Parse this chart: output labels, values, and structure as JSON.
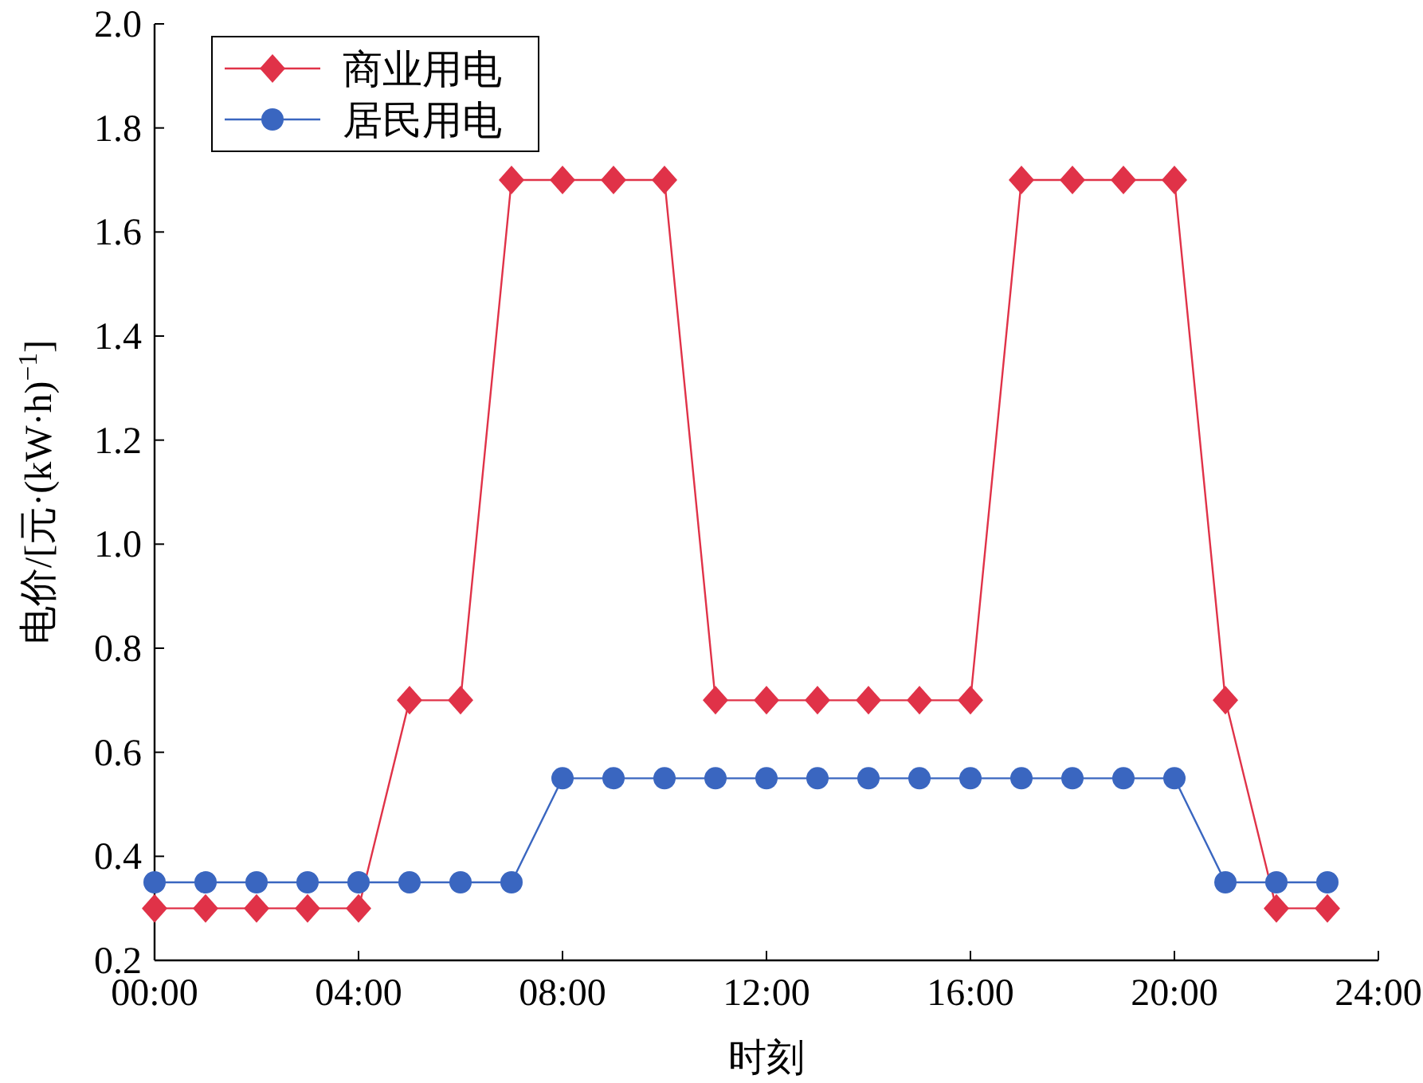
{
  "chart_data": {
    "type": "line",
    "xlabel": "时刻",
    "ylabel": "电价/[元·(kW·h)$^{−1}$]",
    "x": [
      0,
      1,
      2,
      3,
      4,
      5,
      6,
      7,
      8,
      9,
      10,
      11,
      12,
      13,
      14,
      15,
      16,
      17,
      18,
      19,
      20,
      21,
      22,
      23
    ],
    "series": [
      {
        "name": "商业用电",
        "color": "#e03248",
        "marker": "diamond",
        "values": [
          0.3,
          0.3,
          0.3,
          0.3,
          0.3,
          0.7,
          0.7,
          1.7,
          1.7,
          1.7,
          1.7,
          0.7,
          0.7,
          0.7,
          0.7,
          0.7,
          0.7,
          1.7,
          1.7,
          1.7,
          1.7,
          0.7,
          0.3,
          0.3
        ]
      },
      {
        "name": "居民用电",
        "color": "#3a66c0",
        "marker": "circle",
        "values": [
          0.35,
          0.35,
          0.35,
          0.35,
          0.35,
          0.35,
          0.35,
          0.35,
          0.55,
          0.55,
          0.55,
          0.55,
          0.55,
          0.55,
          0.55,
          0.55,
          0.55,
          0.55,
          0.55,
          0.55,
          0.55,
          0.35,
          0.35,
          0.35
        ]
      }
    ],
    "xlim": [
      0,
      24
    ],
    "xticks": [
      {
        "value": 0,
        "label": "00:00"
      },
      {
        "value": 4,
        "label": "04:00"
      },
      {
        "value": 8,
        "label": "08:00"
      },
      {
        "value": 12,
        "label": "12:00"
      },
      {
        "value": 16,
        "label": "16:00"
      },
      {
        "value": 20,
        "label": "20:00"
      },
      {
        "value": 24,
        "label": "24:00"
      }
    ],
    "ylim": [
      0.2,
      2.0
    ],
    "yticks": [
      0.2,
      0.4,
      0.6,
      0.8,
      {
        "value": 1.0,
        "label": "1.0"
      },
      1.2,
      1.4,
      1.6,
      1.8,
      {
        "value": 2.0,
        "label": "2.0"
      }
    ],
    "legend": "top left",
    "grid": false,
    "line_style": "solid"
  }
}
